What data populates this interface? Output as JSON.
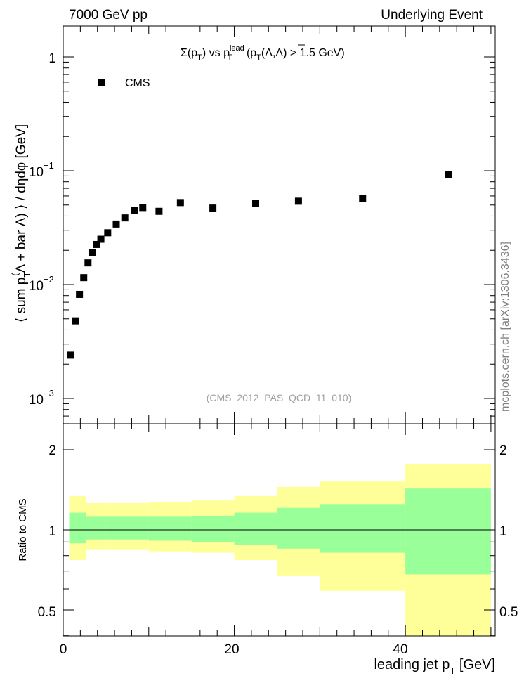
{
  "header": {
    "left": "7000 GeV pp",
    "right": "Underlying Event"
  },
  "watermark": "mcplots.cern.ch [arXiv:1306.3436]",
  "chart_data": [
    {
      "type": "scatter",
      "panel": "main",
      "title": "Σ(pT) vs pT^lead (pT(Λ,Λbar) > 1.5 GeV)",
      "title_parts": {
        "sigma": "Σ(p",
        "sub_t": "T",
        "vs": ") vs p",
        "sup_lead": "lead",
        "sub_t2": "T",
        "cond": " (p",
        "sub_t3": "T",
        "lambda": "(Λ,Λ) > 1.5 GeV)"
      },
      "ylabel": "⟨ sum pT(Λ + bar Λ) ⟩ / dηdφ [GeV]",
      "ylabel_parts": {
        "a": "⟨ sum p",
        "sub": "T",
        "sup": "(",
        "b": "Λ + bar Λ) ⟩ / dηdφ [GeV]"
      },
      "yscale": "log",
      "ylim": [
        0.0006,
        2.0
      ],
      "ytick_labels": {
        "t1": "1",
        "t01": "10",
        "t01_exp": "−1",
        "t001": "10",
        "t001_exp": "−2",
        "t0001": "10",
        "t0001_exp": "−3"
      },
      "xlim": [
        0,
        50.5
      ],
      "legend": {
        "label": "CMS",
        "position": "top-left"
      },
      "annotation": "(CMS_2012_PAS_QCD_11_010)",
      "series": [
        {
          "name": "CMS",
          "color": "#000000",
          "marker": "square",
          "x": [
            0.9,
            1.4,
            1.9,
            2.4,
            2.9,
            3.4,
            3.9,
            4.4,
            5.2,
            6.2,
            7.2,
            8.3,
            9.3,
            11.2,
            13.7,
            17.5,
            22.5,
            27.5,
            35.0,
            45.0
          ],
          "y": [
            0.0024,
            0.0048,
            0.0082,
            0.0115,
            0.0155,
            0.019,
            0.0225,
            0.025,
            0.0285,
            0.034,
            0.0385,
            0.0445,
            0.0475,
            0.044,
            0.0525,
            0.047,
            0.052,
            0.054,
            0.057,
            0.093
          ]
        }
      ]
    },
    {
      "type": "area",
      "panel": "ratio",
      "ylabel": "Ratio to CMS",
      "yscale": "linear",
      "ylim": [
        0.35,
        2.55
      ],
      "xlim": [
        0,
        50.5
      ],
      "xlabel": "leading jet pT [GeV]",
      "xlabel_parts": {
        "a": "leading jet p",
        "sub": "T",
        "b": " [GeV]"
      },
      "xtick_labels": [
        "0",
        "20",
        "40"
      ],
      "ytick_labels": [
        "0.5",
        "1",
        "2"
      ],
      "reference_line": 1,
      "bands": {
        "edges": [
          0.7,
          2.7,
          5,
          10,
          15,
          20,
          25,
          30,
          40,
          50
        ],
        "outer": {
          "color": "#ffff99",
          "lo": [
            0.77,
            0.84,
            0.84,
            0.83,
            0.82,
            0.77,
            0.67,
            0.59,
            0.32
          ],
          "hi": [
            1.34,
            1.26,
            1.26,
            1.27,
            1.29,
            1.34,
            1.45,
            1.52,
            1.76
          ]
        },
        "inner": {
          "color": "#99ff99",
          "lo": [
            0.89,
            0.92,
            0.92,
            0.91,
            0.9,
            0.88,
            0.85,
            0.82,
            0.68
          ],
          "hi": [
            1.16,
            1.12,
            1.12,
            1.12,
            1.13,
            1.16,
            1.21,
            1.25,
            1.43
          ]
        }
      }
    }
  ]
}
